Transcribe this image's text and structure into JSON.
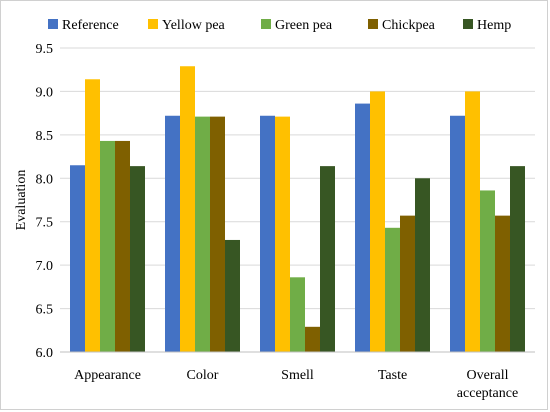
{
  "chart_data": {
    "type": "bar",
    "title": "",
    "xlabel": "",
    "ylabel": "Evaluation",
    "ylim": [
      6.0,
      9.5
    ],
    "yticks": [
      "6.0",
      "6.5",
      "7.0",
      "7.5",
      "8.0",
      "8.5",
      "9.0",
      "9.5"
    ],
    "grid": "horizontal",
    "legend_position": "top",
    "categories": [
      "Appearance",
      "Color",
      "Smell",
      "Taste",
      "Overall acceptance"
    ],
    "series": [
      {
        "name": "Reference",
        "color": "#4472c4",
        "values": [
          8.15,
          8.72,
          8.72,
          8.86,
          8.72
        ]
      },
      {
        "name": "Yellow pea",
        "color": "#ffc000",
        "values": [
          9.14,
          9.29,
          8.71,
          9.0,
          9.0
        ]
      },
      {
        "name": "Green pea",
        "color": "#70ad47",
        "values": [
          8.43,
          8.71,
          6.86,
          7.43,
          7.86
        ]
      },
      {
        "name": "Chickpea",
        "color": "#7f6000",
        "values": [
          8.43,
          8.71,
          6.29,
          7.57,
          7.57
        ]
      },
      {
        "name": "Hemp",
        "color": "#375623",
        "values": [
          8.14,
          7.29,
          8.14,
          8.0,
          8.14
        ]
      }
    ]
  }
}
